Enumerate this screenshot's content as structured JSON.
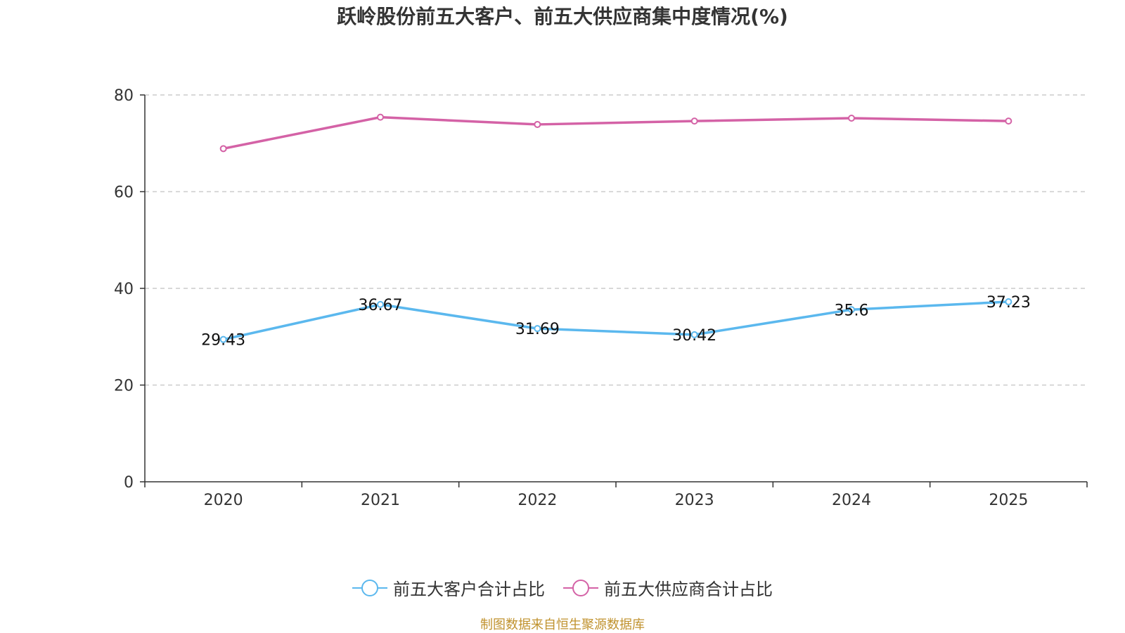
{
  "chart_data": {
    "type": "line",
    "title": "跃岭股份前五大客户、前五大供应商集中度情况(%)",
    "categories": [
      "2020",
      "2021",
      "2022",
      "2023",
      "2024",
      "2025"
    ],
    "ylim": [
      0,
      80
    ],
    "yticks": [
      0,
      20,
      40,
      60,
      80
    ],
    "grid": true,
    "legend_position": "bottom",
    "series": [
      {
        "name": "前五大客户合计占比",
        "color": "#5bb8ee",
        "values": [
          29.43,
          36.67,
          31.69,
          30.42,
          35.6,
          37.23
        ],
        "labels": [
          "29.43",
          "36.67",
          "31.69",
          "30.42",
          "35.6",
          "37.23"
        ],
        "show_labels": true
      },
      {
        "name": "前五大供应商合计占比",
        "color": "#d462a6",
        "values": [
          68.9,
          75.4,
          73.9,
          74.6,
          75.2,
          74.6
        ],
        "labels": [],
        "show_labels": false
      }
    ]
  },
  "source": "制图数据来自恒生聚源数据库"
}
